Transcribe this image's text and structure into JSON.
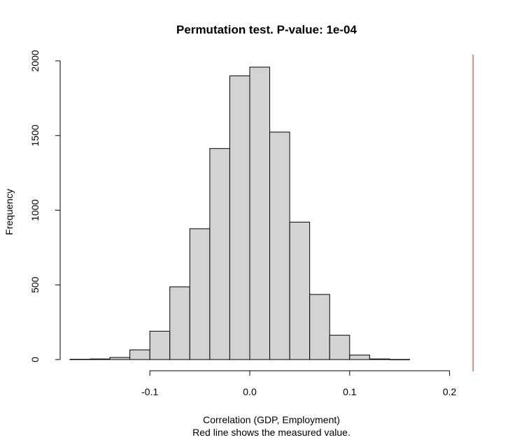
{
  "chart_data": {
    "type": "bar",
    "title": "Permutation test. P-value: 1e-04",
    "xlabel": "Correlation (GDP, Employment)",
    "xlabel_note": "Red line shows the measured value.",
    "ylabel": "Frequency",
    "bin_width": 0.02,
    "bins": [
      {
        "start": -0.18,
        "end": -0.16,
        "value": 2
      },
      {
        "start": -0.16,
        "end": -0.14,
        "value": 4
      },
      {
        "start": -0.14,
        "end": -0.12,
        "value": 14
      },
      {
        "start": -0.12,
        "end": -0.1,
        "value": 65
      },
      {
        "start": -0.1,
        "end": -0.08,
        "value": 190
      },
      {
        "start": -0.08,
        "end": -0.06,
        "value": 487
      },
      {
        "start": -0.06,
        "end": -0.04,
        "value": 876
      },
      {
        "start": -0.04,
        "end": -0.02,
        "value": 1413
      },
      {
        "start": -0.02,
        "end": 0.0,
        "value": 1900
      },
      {
        "start": 0.0,
        "end": 0.02,
        "value": 1958
      },
      {
        "start": 0.02,
        "end": 0.04,
        "value": 1523
      },
      {
        "start": 0.04,
        "end": 0.06,
        "value": 920
      },
      {
        "start": 0.06,
        "end": 0.08,
        "value": 436
      },
      {
        "start": 0.08,
        "end": 0.1,
        "value": 163
      },
      {
        "start": 0.1,
        "end": 0.12,
        "value": 30
      },
      {
        "start": 0.12,
        "end": 0.14,
        "value": 4
      },
      {
        "start": 0.14,
        "end": 0.16,
        "value": 1
      }
    ],
    "xlim": [
      -0.2,
      0.25
    ],
    "ylim": [
      0,
      2000
    ],
    "x_ticks": [
      -0.1,
      0.0,
      0.1,
      0.2
    ],
    "x_tick_labels": [
      "-0.1",
      "0.0",
      "0.1",
      "0.2"
    ],
    "y_ticks": [
      0,
      500,
      1000,
      1500,
      2000
    ],
    "y_tick_labels": [
      "0",
      "500",
      "1000",
      "1500",
      "2000"
    ],
    "reference_line": {
      "x": 0.2235,
      "color": "#cc2222"
    },
    "bar_fill": "#d3d3d3",
    "bar_stroke": "#000000",
    "grid": false,
    "legend": "none"
  }
}
